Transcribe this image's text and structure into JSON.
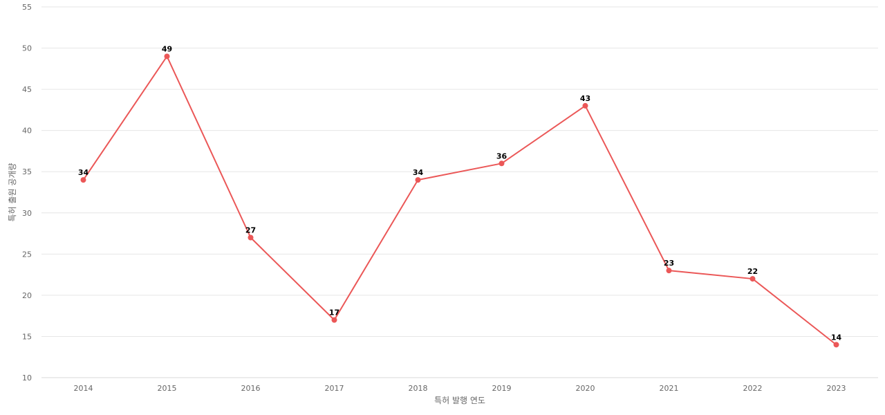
{
  "chart_data": {
    "type": "line",
    "title": "",
    "xlabel": "특허 발행 연도",
    "ylabel": "특허 출원 공개량",
    "categories": [
      "2014",
      "2015",
      "2016",
      "2017",
      "2018",
      "2019",
      "2020",
      "2021",
      "2022",
      "2023"
    ],
    "series": [
      {
        "values": [
          34,
          49,
          27,
          17,
          34,
          36,
          43,
          23,
          22,
          14
        ]
      }
    ],
    "ylim": [
      10,
      55
    ],
    "yticks": [
      10,
      15,
      20,
      25,
      30,
      35,
      40,
      45,
      50,
      55
    ],
    "grid": true,
    "data_labels": true,
    "legend": "none",
    "colors": {
      "line": "#eb5757",
      "marker": "#eb5757"
    }
  }
}
